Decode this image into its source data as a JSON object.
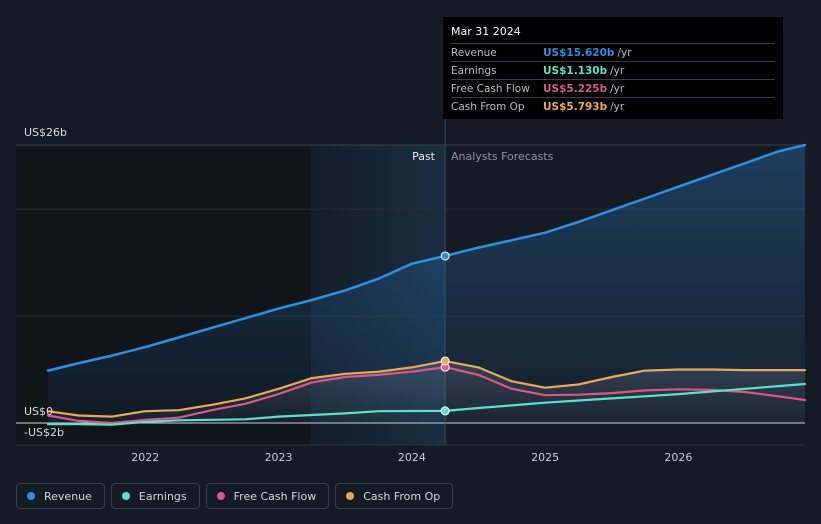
{
  "chart_data": {
    "type": "line",
    "title": "",
    "x_ticks": [
      "2022",
      "2023",
      "2024",
      "2025",
      "2026"
    ],
    "tick_years": [
      2022,
      2023,
      2024,
      2025,
      2026
    ],
    "x_range": [
      2021.27,
      2026.95
    ],
    "y_axis_labels": [
      "US$26b",
      "US$0",
      "-US$2b"
    ],
    "ylim": [
      -2,
      26
    ],
    "past_label": "Past",
    "forecast_label": "Analysts Forecasts",
    "past_shade_start": 2023.24,
    "divider_x": 2024.25,
    "series": [
      {
        "name": "Revenue",
        "color": "#2f8fe0",
        "points": [
          [
            2021.27,
            4.9
          ],
          [
            2021.5,
            5.6
          ],
          [
            2021.75,
            6.3
          ],
          [
            2022.0,
            7.1
          ],
          [
            2022.25,
            8.0
          ],
          [
            2022.5,
            8.9
          ],
          [
            2022.75,
            9.8
          ],
          [
            2023.0,
            10.7
          ],
          [
            2023.25,
            11.5
          ],
          [
            2023.5,
            12.4
          ],
          [
            2023.75,
            13.5
          ],
          [
            2024.0,
            14.9
          ],
          [
            2024.25,
            15.62
          ],
          [
            2024.5,
            16.4
          ],
          [
            2024.75,
            17.1
          ],
          [
            2025.0,
            17.8
          ],
          [
            2025.25,
            18.8
          ],
          [
            2025.5,
            19.9
          ],
          [
            2025.75,
            21.0
          ],
          [
            2026.0,
            22.1
          ],
          [
            2026.25,
            23.2
          ],
          [
            2026.5,
            24.3
          ],
          [
            2026.75,
            25.4
          ],
          [
            2026.95,
            26.0
          ]
        ]
      },
      {
        "name": "Earnings",
        "color": "#5ee0c8",
        "points": [
          [
            2021.27,
            -0.1
          ],
          [
            2021.5,
            -0.1
          ],
          [
            2021.75,
            -0.15
          ],
          [
            2022.0,
            0.1
          ],
          [
            2022.25,
            0.25
          ],
          [
            2022.5,
            0.3
          ],
          [
            2022.75,
            0.35
          ],
          [
            2023.0,
            0.6
          ],
          [
            2023.25,
            0.75
          ],
          [
            2023.5,
            0.9
          ],
          [
            2023.75,
            1.1
          ],
          [
            2024.0,
            1.12
          ],
          [
            2024.25,
            1.13
          ],
          [
            2024.5,
            1.4
          ],
          [
            2024.75,
            1.65
          ],
          [
            2025.0,
            1.9
          ],
          [
            2025.25,
            2.1
          ],
          [
            2025.5,
            2.3
          ],
          [
            2025.75,
            2.5
          ],
          [
            2026.0,
            2.7
          ],
          [
            2026.25,
            2.95
          ],
          [
            2026.5,
            3.2
          ],
          [
            2026.75,
            3.45
          ],
          [
            2026.95,
            3.65
          ]
        ]
      },
      {
        "name": "Free Cash Flow",
        "color": "#d9578a",
        "points": [
          [
            2021.27,
            0.7
          ],
          [
            2021.5,
            0.2
          ],
          [
            2021.75,
            0.0
          ],
          [
            2022.0,
            0.3
          ],
          [
            2022.25,
            0.5
          ],
          [
            2022.5,
            1.2
          ],
          [
            2022.75,
            1.8
          ],
          [
            2023.0,
            2.7
          ],
          [
            2023.25,
            3.8
          ],
          [
            2023.5,
            4.3
          ],
          [
            2023.75,
            4.5
          ],
          [
            2024.0,
            4.8
          ],
          [
            2024.25,
            5.225
          ],
          [
            2024.5,
            4.5
          ],
          [
            2024.75,
            3.2
          ],
          [
            2025.0,
            2.6
          ],
          [
            2025.25,
            2.65
          ],
          [
            2025.5,
            2.8
          ],
          [
            2025.75,
            3.05
          ],
          [
            2026.0,
            3.15
          ],
          [
            2026.25,
            3.1
          ],
          [
            2026.5,
            2.9
          ],
          [
            2026.75,
            2.5
          ],
          [
            2026.95,
            2.15
          ]
        ]
      },
      {
        "name": "Cash From Op",
        "color": "#e8a95c",
        "points": [
          [
            2021.27,
            1.1
          ],
          [
            2021.5,
            0.7
          ],
          [
            2021.75,
            0.6
          ],
          [
            2022.0,
            1.1
          ],
          [
            2022.25,
            1.2
          ],
          [
            2022.5,
            1.7
          ],
          [
            2022.75,
            2.3
          ],
          [
            2023.0,
            3.2
          ],
          [
            2023.25,
            4.2
          ],
          [
            2023.5,
            4.6
          ],
          [
            2023.75,
            4.8
          ],
          [
            2024.0,
            5.2
          ],
          [
            2024.25,
            5.793
          ],
          [
            2024.5,
            5.2
          ],
          [
            2024.75,
            3.9
          ],
          [
            2025.0,
            3.3
          ],
          [
            2025.25,
            3.6
          ],
          [
            2025.5,
            4.3
          ],
          [
            2025.75,
            4.9
          ],
          [
            2026.0,
            5.0
          ],
          [
            2026.25,
            5.0
          ],
          [
            2026.5,
            4.95
          ],
          [
            2026.75,
            4.95
          ],
          [
            2026.95,
            4.95
          ]
        ]
      }
    ]
  },
  "tooltip": {
    "date": "Mar 31 2024",
    "rows": [
      {
        "label": "Revenue",
        "value": "US$15.620b",
        "unit": "/yr",
        "color": "#2f8fe0"
      },
      {
        "label": "Earnings",
        "value": "US$1.130b",
        "unit": "/yr",
        "color": "#5ee0c8"
      },
      {
        "label": "Free Cash Flow",
        "value": "US$5.225b",
        "unit": "/yr",
        "color": "#d9578a"
      },
      {
        "label": "Cash From Op",
        "value": "US$5.793b",
        "unit": "/yr",
        "color": "#e8a95c"
      }
    ]
  },
  "legend": [
    {
      "label": "Revenue",
      "color": "#2f8fe0"
    },
    {
      "label": "Earnings",
      "color": "#5ee0c8"
    },
    {
      "label": "Free Cash Flow",
      "color": "#d9578a"
    },
    {
      "label": "Cash From Op",
      "color": "#e8a95c"
    }
  ]
}
